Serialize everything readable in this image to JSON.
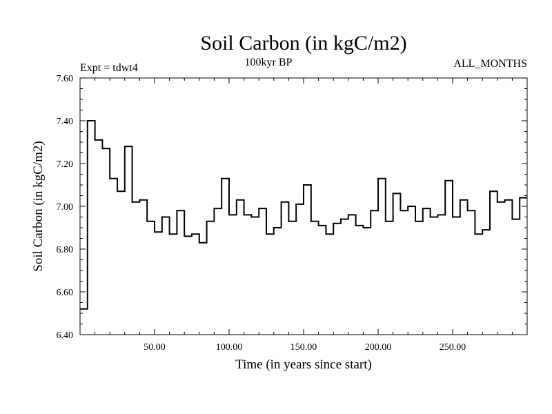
{
  "chart_data": {
    "type": "line",
    "step": true,
    "title": "Soil Carbon (in kgC/m2)",
    "subtitle_center": "100kyr BP",
    "subtitle_left": "Expt = tdwt4",
    "subtitle_right": "ALL_MONTHS",
    "xlabel": "Time (in years since start)",
    "ylabel": "Soil Carbon (in kgC/m2)",
    "xlim": [
      0,
      300
    ],
    "ylim": [
      6.4,
      7.6
    ],
    "xticks": [
      50,
      100,
      150,
      200,
      250
    ],
    "xtick_labels": [
      "50.00",
      "100.00",
      "150.00",
      "200.00",
      "250.00"
    ],
    "yticks": [
      6.4,
      6.6,
      6.8,
      7.0,
      7.2,
      7.4,
      7.6
    ],
    "ytick_labels": [
      "6.40",
      "6.60",
      "6.80",
      "7.00",
      "7.20",
      "7.40",
      "7.60"
    ],
    "bin_width": 5,
    "x": [
      0,
      5,
      10,
      15,
      20,
      25,
      30,
      35,
      40,
      45,
      50,
      55,
      60,
      65,
      70,
      75,
      80,
      85,
      90,
      95,
      100,
      105,
      110,
      115,
      120,
      125,
      130,
      135,
      140,
      145,
      150,
      155,
      160,
      165,
      170,
      175,
      180,
      185,
      190,
      195,
      200,
      205,
      210,
      215,
      220,
      225,
      230,
      235,
      240,
      245,
      250,
      255,
      260,
      265,
      270,
      275,
      280,
      285,
      290,
      295
    ],
    "values": [
      6.52,
      7.4,
      7.31,
      7.27,
      7.13,
      7.07,
      7.28,
      7.02,
      7.03,
      6.93,
      6.88,
      6.95,
      6.87,
      6.98,
      6.86,
      6.87,
      6.83,
      6.93,
      6.99,
      7.13,
      6.96,
      7.03,
      6.96,
      6.95,
      6.99,
      6.87,
      6.9,
      7.02,
      6.93,
      7.01,
      7.1,
      6.93,
      6.91,
      6.87,
      6.92,
      6.94,
      6.96,
      6.91,
      6.9,
      6.98,
      7.13,
      6.93,
      7.06,
      6.98,
      7.0,
      6.93,
      6.99,
      6.95,
      6.96,
      7.12,
      6.95,
      7.03,
      6.98,
      6.87,
      6.89,
      7.07,
      7.02,
      7.03,
      6.94,
      7.04
    ]
  }
}
